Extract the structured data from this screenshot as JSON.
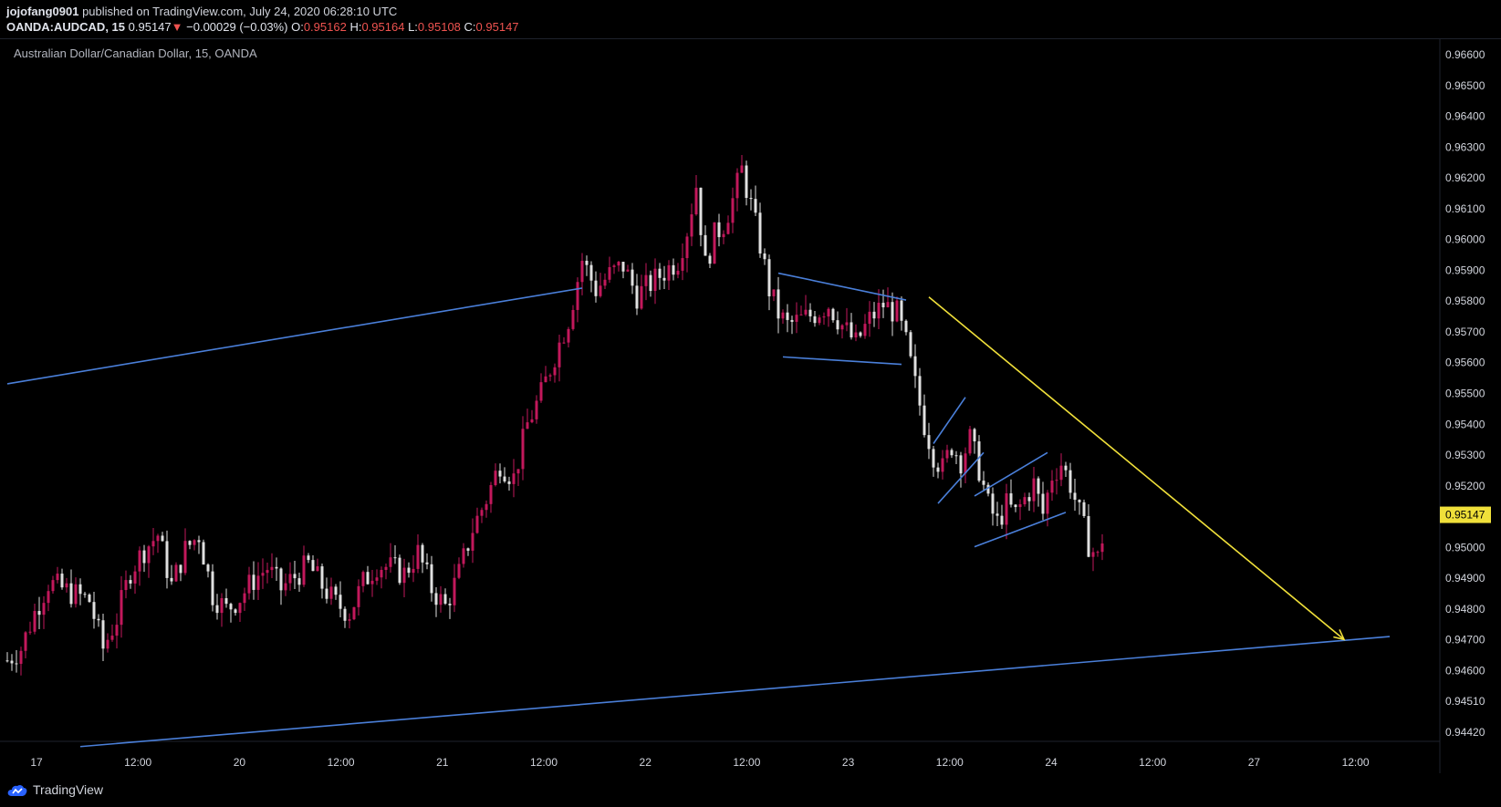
{
  "header": {
    "author": "jojofang0901",
    "published_text": " published on TradingView.com, July 24, 2020 06:28:10 UTC",
    "symbol": "OANDA:AUDCAD, 15",
    "last_price": "0.95147",
    "change_arrow": "▼",
    "change": "−0.00029 (−0.03%)",
    "open_label": "O:",
    "open": "0.95162",
    "high_label": "H:",
    "high": "0.95164",
    "low_label": "L:",
    "low": "0.95108",
    "close_label": "C:",
    "close": "0.95147"
  },
  "footer": {
    "brand": "TradingView"
  },
  "colors": {
    "up": "#c2185b",
    "down": "#e0e0e0",
    "trendline": "#4a7fd9",
    "arrow": "#f0e03a",
    "price_tag": "#f0e03a"
  },
  "chart_data": {
    "type": "candlestick",
    "title": "Australian Dollar/Canadian Dollar, 15, OANDA",
    "y_ticks": [
      "0.96600",
      "0.96500",
      "0.96400",
      "0.96300",
      "0.96200",
      "0.96100",
      "0.96000",
      "0.95900",
      "0.95800",
      "0.95700",
      "0.95600",
      "0.95500",
      "0.95400",
      "0.95300",
      "0.95200",
      "0.95100",
      "0.95000",
      "0.94900",
      "0.94800",
      "0.94700",
      "0.94600",
      "0.94510",
      "0.94420"
    ],
    "x_ticks": [
      "17",
      "12:00",
      "20",
      "12:00",
      "21",
      "12:00",
      "22",
      "12:00",
      "23",
      "12:00",
      "24",
      "12:00",
      "27",
      "12:00"
    ],
    "current_price": "0.95147",
    "ylim": [
      0.9435,
      0.9665
    ],
    "price_path": [
      [
        0,
        0.9466
      ],
      [
        3,
        0.947
      ],
      [
        6,
        0.9482
      ],
      [
        9,
        0.9492
      ],
      [
        12,
        0.949
      ],
      [
        15,
        0.9488
      ],
      [
        18,
        0.9486
      ],
      [
        21,
        0.947
      ],
      [
        24,
        0.948
      ],
      [
        27,
        0.9496
      ],
      [
        30,
        0.9503
      ],
      [
        33,
        0.9508
      ],
      [
        36,
        0.9491
      ],
      [
        39,
        0.9503
      ],
      [
        42,
        0.9508
      ],
      [
        45,
        0.9488
      ],
      [
        48,
        0.9483
      ],
      [
        51,
        0.9487
      ],
      [
        54,
        0.9493
      ],
      [
        57,
        0.9497
      ],
      [
        60,
        0.949
      ],
      [
        63,
        0.9494
      ],
      [
        66,
        0.9498
      ],
      [
        69,
        0.9491
      ],
      [
        72,
        0.9485
      ],
      [
        75,
        0.9482
      ],
      [
        78,
        0.9492
      ],
      [
        81,
        0.9498
      ],
      [
        84,
        0.9497
      ],
      [
        87,
        0.9495
      ],
      [
        90,
        0.9502
      ],
      [
        93,
        0.949
      ],
      [
        96,
        0.9484
      ],
      [
        99,
        0.9495
      ],
      [
        102,
        0.951
      ],
      [
        105,
        0.952
      ],
      [
        108,
        0.9532
      ],
      [
        111,
        0.9527
      ],
      [
        114,
        0.9545
      ],
      [
        117,
        0.9555
      ],
      [
        120,
        0.9568
      ],
      [
        123,
        0.958
      ],
      [
        126,
        0.96
      ],
      [
        129,
        0.959
      ],
      [
        132,
        0.9595
      ],
      [
        135,
        0.9598
      ],
      [
        138,
        0.9588
      ],
      [
        141,
        0.9592
      ],
      [
        144,
        0.9596
      ],
      [
        147,
        0.96
      ],
      [
        149,
        0.961
      ],
      [
        151,
        0.9625
      ],
      [
        153,
        0.9598
      ],
      [
        155,
        0.9608
      ],
      [
        157,
        0.9612
      ],
      [
        159,
        0.962
      ],
      [
        161,
        0.963
      ],
      [
        163,
        0.9618
      ],
      [
        165,
        0.9605
      ],
      [
        167,
        0.959
      ],
      [
        169,
        0.9582
      ],
      [
        171,
        0.9578
      ],
      [
        174,
        0.958
      ],
      [
        177,
        0.9582
      ],
      [
        180,
        0.9585
      ],
      [
        183,
        0.9578
      ],
      [
        186,
        0.9572
      ],
      [
        189,
        0.958
      ],
      [
        192,
        0.9585
      ],
      [
        195,
        0.9582
      ],
      [
        197,
        0.9572
      ],
      [
        199,
        0.9558
      ],
      [
        201,
        0.9545
      ],
      [
        203,
        0.9535
      ],
      [
        205,
        0.953
      ],
      [
        207,
        0.9538
      ],
      [
        209,
        0.9533
      ],
      [
        211,
        0.954
      ],
      [
        213,
        0.953
      ],
      [
        215,
        0.9518
      ],
      [
        217,
        0.9512
      ],
      [
        219,
        0.9518
      ],
      [
        221,
        0.9515
      ],
      [
        223,
        0.952
      ],
      [
        225,
        0.9525
      ],
      [
        227,
        0.9515
      ],
      [
        229,
        0.9528
      ],
      [
        231,
        0.9532
      ],
      [
        233,
        0.9525
      ],
      [
        235,
        0.9515
      ],
      [
        237,
        0.9505
      ],
      [
        239,
        0.95
      ],
      [
        241,
        0.9514
      ]
    ],
    "trendlines": [
      {
        "from": [
          0,
          0.95585
        ],
        "to": [
          126,
          0.95905
        ],
        "color": "blue"
      },
      {
        "from": [
          16,
          0.94372
        ],
        "to": [
          303,
          0.9474
        ],
        "color": "blue"
      },
      {
        "from": [
          169,
          0.95955
        ],
        "to": [
          197,
          0.95865
        ],
        "color": "blue"
      },
      {
        "from": [
          170,
          0.95675
        ],
        "to": [
          196,
          0.9565
        ],
        "color": "blue"
      },
      {
        "from": [
          203,
          0.95385
        ],
        "to": [
          210,
          0.9554
        ],
        "color": "blue"
      },
      {
        "from": [
          204,
          0.95185
        ],
        "to": [
          214,
          0.95355
        ],
        "color": "blue"
      },
      {
        "from": [
          212,
          0.9521
        ],
        "to": [
          228,
          0.95355
        ],
        "color": "blue"
      },
      {
        "from": [
          212,
          0.9504
        ],
        "to": [
          232,
          0.95155
        ],
        "color": "blue"
      },
      {
        "from": [
          202,
          0.95875
        ],
        "to": [
          293,
          0.9473
        ],
        "color": "yellow",
        "arrow": true
      }
    ]
  }
}
